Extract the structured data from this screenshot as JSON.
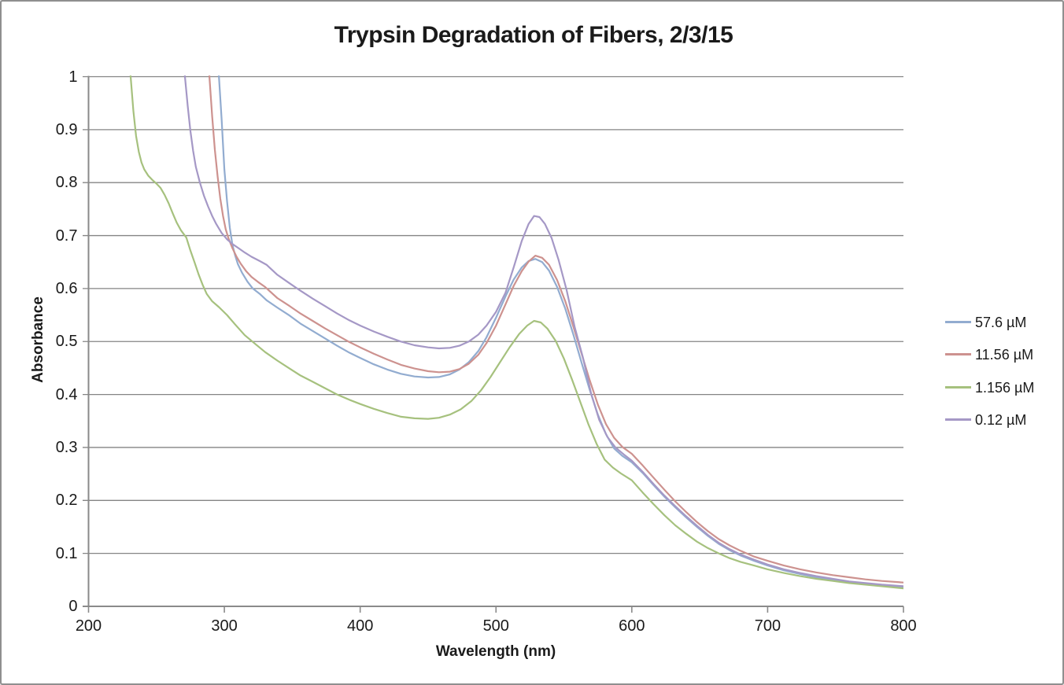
{
  "chart_data": {
    "type": "line",
    "title": "Trypsin Degradation of Fibers, 2/3/15",
    "xlabel": "Wavelength (nm)",
    "ylabel": "Absorbance",
    "xlim": [
      200,
      800
    ],
    "ylim": [
      0,
      1
    ],
    "x_ticks": [
      "200",
      "300",
      "400",
      "500",
      "600",
      "700",
      "800"
    ],
    "y_ticks": [
      "0",
      "0.1",
      "0.2",
      "0.3",
      "0.4",
      "0.5",
      "0.6",
      "0.7",
      "0.8",
      "0.9",
      "1"
    ],
    "grid": "horizontal",
    "legend_position": "right",
    "series": [
      {
        "name": "57.6 µM",
        "color": "#92acd0",
        "points": [
          [
            293,
            1.08
          ],
          [
            296,
            1.0
          ],
          [
            298,
            0.92
          ],
          [
            300,
            0.825
          ],
          [
            302,
            0.765
          ],
          [
            304,
            0.715
          ],
          [
            306,
            0.682
          ],
          [
            308,
            0.662
          ],
          [
            310,
            0.646
          ],
          [
            313,
            0.63
          ],
          [
            317,
            0.613
          ],
          [
            321,
            0.6
          ],
          [
            326,
            0.59
          ],
          [
            331,
            0.578
          ],
          [
            339,
            0.564
          ],
          [
            348,
            0.549
          ],
          [
            356,
            0.534
          ],
          [
            365,
            0.52
          ],
          [
            374,
            0.506
          ],
          [
            383,
            0.492
          ],
          [
            392,
            0.479
          ],
          [
            400,
            0.469
          ],
          [
            410,
            0.457
          ],
          [
            420,
            0.447
          ],
          [
            430,
            0.439
          ],
          [
            440,
            0.434
          ],
          [
            450,
            0.432
          ],
          [
            458,
            0.433
          ],
          [
            466,
            0.438
          ],
          [
            473,
            0.447
          ],
          [
            480,
            0.461
          ],
          [
            487,
            0.482
          ],
          [
            493,
            0.508
          ],
          [
            500,
            0.545
          ],
          [
            507,
            0.585
          ],
          [
            513,
            0.617
          ],
          [
            519,
            0.64
          ],
          [
            524,
            0.652
          ],
          [
            529,
            0.656
          ],
          [
            534,
            0.65
          ],
          [
            539,
            0.634
          ],
          [
            545,
            0.603
          ],
          [
            551,
            0.562
          ],
          [
            557,
            0.513
          ],
          [
            563,
            0.46
          ],
          [
            569,
            0.409
          ],
          [
            575,
            0.362
          ],
          [
            581,
            0.325
          ],
          [
            587,
            0.298
          ],
          [
            593,
            0.284
          ],
          [
            600,
            0.272
          ],
          [
            608,
            0.252
          ],
          [
            616,
            0.229
          ],
          [
            624,
            0.207
          ],
          [
            632,
            0.187
          ],
          [
            640,
            0.168
          ],
          [
            648,
            0.15
          ],
          [
            656,
            0.133
          ],
          [
            664,
            0.118
          ],
          [
            672,
            0.106
          ],
          [
            680,
            0.096
          ],
          [
            690,
            0.086
          ],
          [
            700,
            0.077
          ],
          [
            712,
            0.068
          ],
          [
            724,
            0.061
          ],
          [
            736,
            0.055
          ],
          [
            748,
            0.05
          ],
          [
            760,
            0.046
          ],
          [
            772,
            0.042
          ],
          [
            784,
            0.039
          ],
          [
            800,
            0.037
          ]
        ]
      },
      {
        "name": "11.56 µM",
        "color": "#cd928f",
        "points": [
          [
            287,
            1.08
          ],
          [
            289,
            1.0
          ],
          [
            291,
            0.925
          ],
          [
            293,
            0.862
          ],
          [
            295,
            0.812
          ],
          [
            297,
            0.77
          ],
          [
            299,
            0.737
          ],
          [
            301,
            0.712
          ],
          [
            303,
            0.695
          ],
          [
            306,
            0.676
          ],
          [
            309,
            0.66
          ],
          [
            312,
            0.647
          ],
          [
            316,
            0.633
          ],
          [
            320,
            0.622
          ],
          [
            325,
            0.612
          ],
          [
            330,
            0.603
          ],
          [
            339,
            0.582
          ],
          [
            348,
            0.567
          ],
          [
            356,
            0.553
          ],
          [
            365,
            0.539
          ],
          [
            374,
            0.525
          ],
          [
            383,
            0.512
          ],
          [
            392,
            0.499
          ],
          [
            400,
            0.489
          ],
          [
            410,
            0.477
          ],
          [
            420,
            0.466
          ],
          [
            430,
            0.456
          ],
          [
            440,
            0.449
          ],
          [
            450,
            0.444
          ],
          [
            458,
            0.442
          ],
          [
            466,
            0.443
          ],
          [
            473,
            0.448
          ],
          [
            480,
            0.458
          ],
          [
            487,
            0.475
          ],
          [
            493,
            0.497
          ],
          [
            500,
            0.53
          ],
          [
            507,
            0.57
          ],
          [
            513,
            0.605
          ],
          [
            519,
            0.633
          ],
          [
            524,
            0.651
          ],
          [
            529,
            0.662
          ],
          [
            534,
            0.658
          ],
          [
            539,
            0.645
          ],
          [
            545,
            0.616
          ],
          [
            551,
            0.576
          ],
          [
            557,
            0.528
          ],
          [
            563,
            0.477
          ],
          [
            569,
            0.427
          ],
          [
            575,
            0.381
          ],
          [
            581,
            0.344
          ],
          [
            587,
            0.318
          ],
          [
            593,
            0.301
          ],
          [
            600,
            0.288
          ],
          [
            608,
            0.266
          ],
          [
            616,
            0.243
          ],
          [
            624,
            0.22
          ],
          [
            632,
            0.198
          ],
          [
            640,
            0.178
          ],
          [
            648,
            0.159
          ],
          [
            656,
            0.142
          ],
          [
            664,
            0.127
          ],
          [
            672,
            0.115
          ],
          [
            680,
            0.105
          ],
          [
            690,
            0.094
          ],
          [
            700,
            0.086
          ],
          [
            712,
            0.077
          ],
          [
            724,
            0.07
          ],
          [
            736,
            0.064
          ],
          [
            748,
            0.059
          ],
          [
            760,
            0.055
          ],
          [
            772,
            0.051
          ],
          [
            784,
            0.048
          ],
          [
            800,
            0.045
          ]
        ]
      },
      {
        "name": "1.156 µM",
        "color": "#a6c17e",
        "points": [
          [
            229,
            1.08
          ],
          [
            231,
            1.0
          ],
          [
            233,
            0.935
          ],
          [
            235,
            0.888
          ],
          [
            237,
            0.858
          ],
          [
            239,
            0.838
          ],
          [
            241,
            0.825
          ],
          [
            244,
            0.813
          ],
          [
            247,
            0.805
          ],
          [
            250,
            0.798
          ],
          [
            253,
            0.79
          ],
          [
            256,
            0.777
          ],
          [
            259,
            0.761
          ],
          [
            262,
            0.742
          ],
          [
            265,
            0.724
          ],
          [
            268,
            0.71
          ],
          [
            272,
            0.696
          ],
          [
            275,
            0.672
          ],
          [
            278,
            0.65
          ],
          [
            281,
            0.627
          ],
          [
            284,
            0.607
          ],
          [
            287,
            0.59
          ],
          [
            291,
            0.576
          ],
          [
            296,
            0.565
          ],
          [
            302,
            0.55
          ],
          [
            308,
            0.532
          ],
          [
            315,
            0.512
          ],
          [
            322,
            0.497
          ],
          [
            330,
            0.48
          ],
          [
            339,
            0.464
          ],
          [
            348,
            0.449
          ],
          [
            356,
            0.436
          ],
          [
            365,
            0.424
          ],
          [
            374,
            0.412
          ],
          [
            383,
            0.4
          ],
          [
            392,
            0.39
          ],
          [
            400,
            0.382
          ],
          [
            410,
            0.373
          ],
          [
            420,
            0.365
          ],
          [
            430,
            0.358
          ],
          [
            440,
            0.355
          ],
          [
            450,
            0.354
          ],
          [
            458,
            0.356
          ],
          [
            466,
            0.362
          ],
          [
            474,
            0.372
          ],
          [
            482,
            0.388
          ],
          [
            489,
            0.408
          ],
          [
            496,
            0.433
          ],
          [
            503,
            0.461
          ],
          [
            510,
            0.489
          ],
          [
            517,
            0.514
          ],
          [
            523,
            0.53
          ],
          [
            528,
            0.539
          ],
          [
            533,
            0.536
          ],
          [
            538,
            0.524
          ],
          [
            544,
            0.501
          ],
          [
            550,
            0.468
          ],
          [
            556,
            0.428
          ],
          [
            562,
            0.386
          ],
          [
            568,
            0.344
          ],
          [
            574,
            0.307
          ],
          [
            580,
            0.277
          ],
          [
            586,
            0.262
          ],
          [
            592,
            0.251
          ],
          [
            600,
            0.238
          ],
          [
            608,
            0.215
          ],
          [
            616,
            0.193
          ],
          [
            624,
            0.172
          ],
          [
            632,
            0.153
          ],
          [
            640,
            0.137
          ],
          [
            648,
            0.122
          ],
          [
            656,
            0.11
          ],
          [
            664,
            0.1
          ],
          [
            672,
            0.091
          ],
          [
            680,
            0.084
          ],
          [
            690,
            0.077
          ],
          [
            700,
            0.07
          ],
          [
            712,
            0.063
          ],
          [
            724,
            0.057
          ],
          [
            736,
            0.052
          ],
          [
            748,
            0.048
          ],
          [
            760,
            0.044
          ],
          [
            772,
            0.041
          ],
          [
            784,
            0.038
          ],
          [
            800,
            0.034
          ]
        ]
      },
      {
        "name": "0.12 µM",
        "color": "#a598c6",
        "points": [
          [
            268,
            1.08
          ],
          [
            271,
            1.0
          ],
          [
            273,
            0.945
          ],
          [
            275,
            0.898
          ],
          [
            277,
            0.86
          ],
          [
            279,
            0.83
          ],
          [
            282,
            0.8
          ],
          [
            285,
            0.775
          ],
          [
            288,
            0.755
          ],
          [
            291,
            0.737
          ],
          [
            294,
            0.722
          ],
          [
            298,
            0.705
          ],
          [
            302,
            0.693
          ],
          [
            306,
            0.684
          ],
          [
            310,
            0.677
          ],
          [
            315,
            0.668
          ],
          [
            320,
            0.66
          ],
          [
            326,
            0.652
          ],
          [
            331,
            0.645
          ],
          [
            339,
            0.626
          ],
          [
            348,
            0.61
          ],
          [
            356,
            0.596
          ],
          [
            365,
            0.581
          ],
          [
            374,
            0.567
          ],
          [
            383,
            0.553
          ],
          [
            392,
            0.54
          ],
          [
            400,
            0.53
          ],
          [
            410,
            0.519
          ],
          [
            420,
            0.509
          ],
          [
            430,
            0.5
          ],
          [
            440,
            0.493
          ],
          [
            450,
            0.489
          ],
          [
            458,
            0.487
          ],
          [
            466,
            0.488
          ],
          [
            473,
            0.492
          ],
          [
            480,
            0.5
          ],
          [
            487,
            0.513
          ],
          [
            493,
            0.53
          ],
          [
            500,
            0.556
          ],
          [
            507,
            0.592
          ],
          [
            513,
            0.64
          ],
          [
            519,
            0.69
          ],
          [
            524,
            0.722
          ],
          [
            528,
            0.737
          ],
          [
            532,
            0.735
          ],
          [
            536,
            0.722
          ],
          [
            541,
            0.695
          ],
          [
            546,
            0.655
          ],
          [
            552,
            0.597
          ],
          [
            558,
            0.527
          ],
          [
            564,
            0.47
          ],
          [
            570,
            0.402
          ],
          [
            576,
            0.352
          ],
          [
            582,
            0.32
          ],
          [
            588,
            0.3
          ],
          [
            594,
            0.287
          ],
          [
            600,
            0.275
          ],
          [
            608,
            0.254
          ],
          [
            616,
            0.231
          ],
          [
            624,
            0.209
          ],
          [
            632,
            0.189
          ],
          [
            640,
            0.17
          ],
          [
            648,
            0.152
          ],
          [
            656,
            0.135
          ],
          [
            664,
            0.12
          ],
          [
            672,
            0.108
          ],
          [
            680,
            0.098
          ],
          [
            690,
            0.088
          ],
          [
            700,
            0.079
          ],
          [
            712,
            0.07
          ],
          [
            724,
            0.063
          ],
          [
            736,
            0.057
          ],
          [
            748,
            0.052
          ],
          [
            760,
            0.047
          ],
          [
            772,
            0.044
          ],
          [
            784,
            0.041
          ],
          [
            800,
            0.038
          ]
        ]
      }
    ],
    "colors": {
      "gridline": "#848484",
      "axis": "#8a8a8a",
      "text": "#1a1a1a",
      "background": "#ffffff",
      "border": "#8f8f8f"
    }
  }
}
